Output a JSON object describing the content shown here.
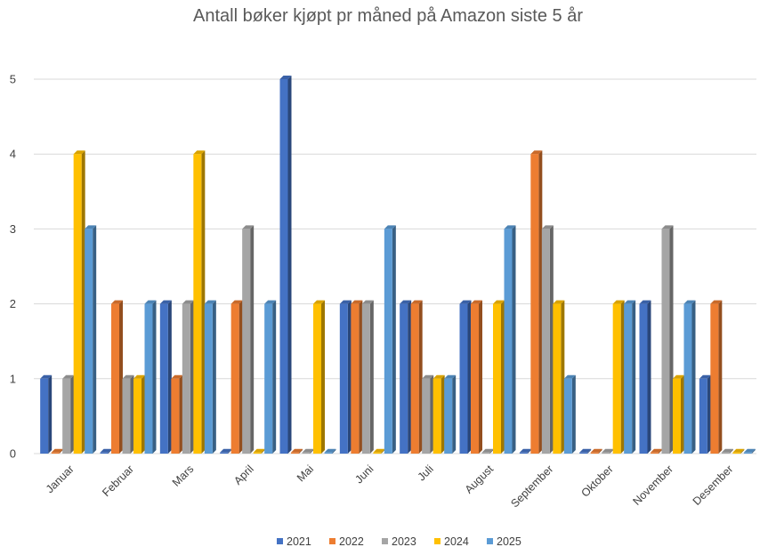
{
  "chart_data": {
    "type": "bar",
    "title": "Antall bøker kjøpt pr måned på Amazon siste 5 år",
    "xlabel": "",
    "ylabel": "",
    "ylim": [
      0,
      5
    ],
    "yticks": [
      0,
      1,
      2,
      3,
      4,
      5
    ],
    "grid": true,
    "legend_position": "bottom",
    "categories": [
      "Januar",
      "Februar",
      "Mars",
      "April",
      "Mai",
      "Juni",
      "Juli",
      "August",
      "September",
      "Oktober",
      "November",
      "Desember"
    ],
    "series": [
      {
        "name": "2021",
        "color": "#4472c4",
        "values": [
          1,
          0,
          2,
          0,
          5,
          2,
          2,
          2,
          0,
          0,
          2,
          1
        ]
      },
      {
        "name": "2022",
        "color": "#ed7d31",
        "values": [
          0,
          2,
          1,
          2,
          0,
          2,
          2,
          2,
          4,
          0,
          0,
          2
        ]
      },
      {
        "name": "2023",
        "color": "#a5a5a5",
        "values": [
          1,
          1,
          2,
          3,
          0,
          2,
          1,
          0,
          3,
          0,
          3,
          0
        ]
      },
      {
        "name": "2024",
        "color": "#ffc000",
        "values": [
          4,
          1,
          4,
          0,
          2,
          0,
          1,
          2,
          2,
          2,
          1,
          0
        ]
      },
      {
        "name": "2025",
        "color": "#5b9bd5",
        "values": [
          3,
          2,
          2,
          2,
          0,
          3,
          1,
          3,
          1,
          2,
          2,
          0
        ]
      }
    ]
  }
}
